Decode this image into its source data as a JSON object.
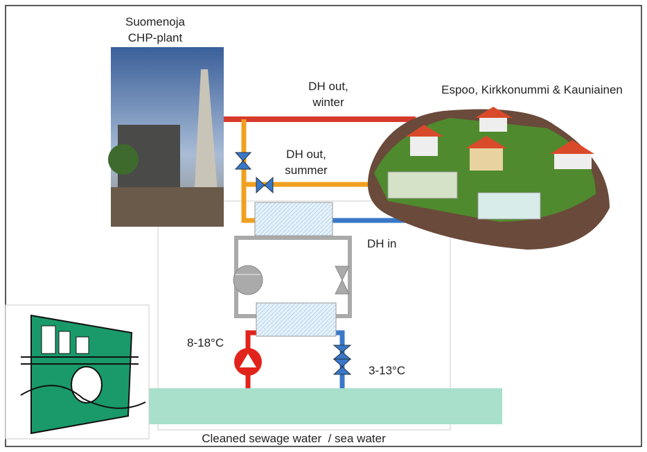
{
  "plant": {
    "name": "Suomenoja",
    "type": "CHP-plant"
  },
  "pipes": {
    "winter_out": [
      "DH out,",
      "winter"
    ],
    "summer_out": [
      "DH out,",
      "summer"
    ],
    "return": "DH in"
  },
  "consumers": "Espoo, Kirkkonummi & Kauniainen",
  "source": {
    "warm": "8-18°C",
    "cold": "3-13°C",
    "name": "Cleaned sewage water  / sea water"
  }
}
